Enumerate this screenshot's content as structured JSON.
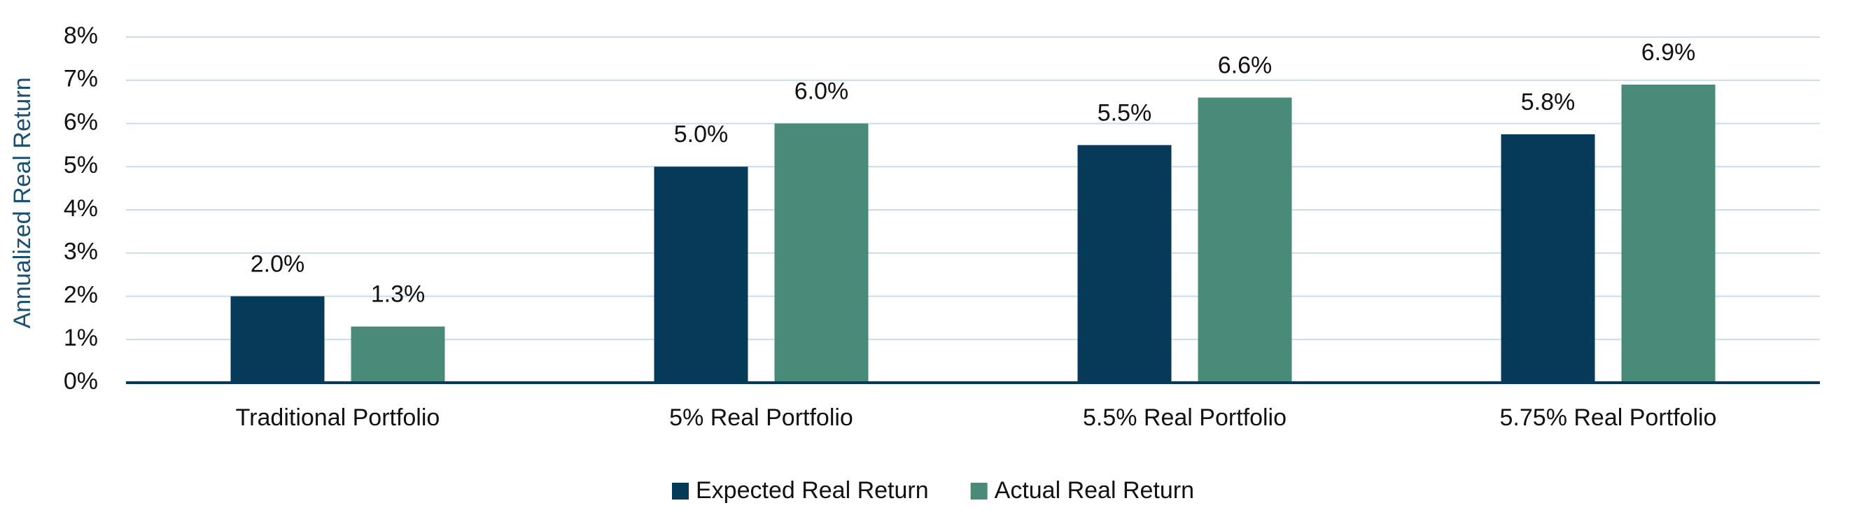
{
  "chart_data": {
    "type": "bar",
    "y_label": "Annualized Real Return",
    "categories": [
      "Traditional Portfolio",
      "5% Real Portfolio",
      "5.5% Real Portfolio",
      "5.75% Real Portfolio"
    ],
    "series": [
      {
        "name": "Expected Real Return",
        "color": "#053a58",
        "values": [
          2.0,
          5.0,
          5.5,
          5.75
        ],
        "value_labels": [
          "2.0%",
          "5.0%",
          "5.5%",
          "5.8%"
        ]
      },
      {
        "name": "Actual Real Return",
        "color": "#4a8a78",
        "values": [
          1.3,
          6.0,
          6.6,
          6.9
        ],
        "value_labels": [
          "1.3%",
          "6.0%",
          "6.6%",
          "6.9%"
        ]
      }
    ],
    "ylim": [
      0,
      8
    ],
    "yticks": [
      {
        "value": 0,
        "label": "0%"
      },
      {
        "value": 1,
        "label": "1%"
      },
      {
        "value": 2,
        "label": "2%"
      },
      {
        "value": 3,
        "label": "3%"
      },
      {
        "value": 4,
        "label": "4%"
      },
      {
        "value": 5,
        "label": "5%"
      },
      {
        "value": 6,
        "label": "6%"
      },
      {
        "value": 7,
        "label": "7%"
      },
      {
        "value": 8,
        "label": "8%"
      }
    ],
    "grid": true,
    "legend": "bottom"
  }
}
